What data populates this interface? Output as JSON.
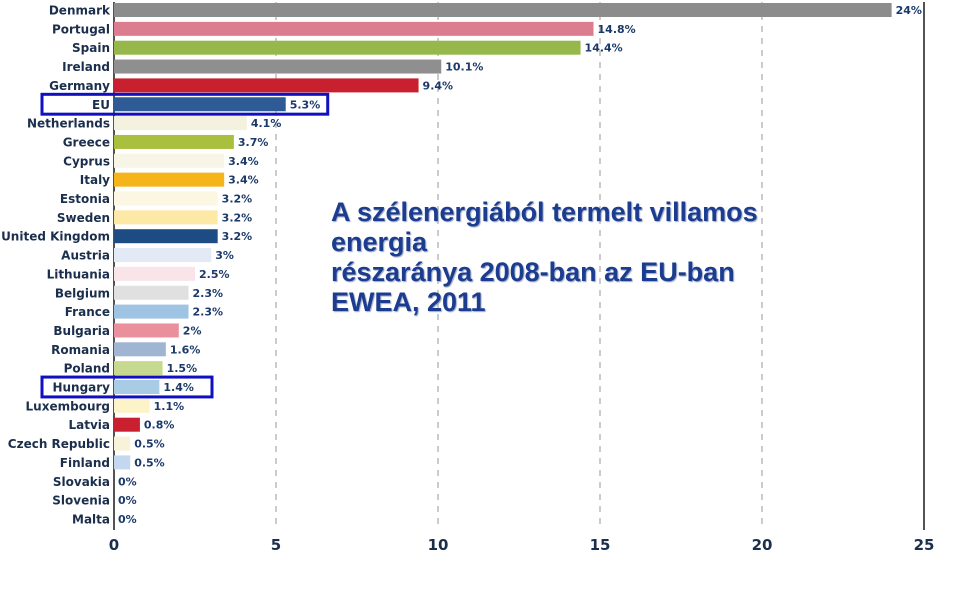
{
  "overlay": {
    "line1": "A szélenergiából termelt villamos",
    "line2": "energia",
    "line3": "részaránya 2008-ban az EU-ban",
    "line4": "EWEA, 2011"
  },
  "chart_data": {
    "type": "bar",
    "orientation": "horizontal",
    "title": "",
    "xlabel": "",
    "ylabel": "",
    "xlim": [
      0,
      25
    ],
    "x_ticks": [
      0,
      5,
      10,
      15,
      20,
      25
    ],
    "grid": true,
    "categories": [
      "Denmark",
      "Portugal",
      "Spain",
      "Ireland",
      "Germany",
      "EU",
      "Netherlands",
      "Greece",
      "Cyprus",
      "Italy",
      "Estonia",
      "Sweden",
      "United Kingdom",
      "Austria",
      "Lithuania",
      "Belgium",
      "France",
      "Bulgaria",
      "Romania",
      "Poland",
      "Hungary",
      "Luxembourg",
      "Latvia",
      "Czech Republic",
      "Finland",
      "Slovakia",
      "Slovenia",
      "Malta"
    ],
    "values": [
      24,
      14.8,
      14.4,
      10.1,
      9.4,
      5.3,
      4.1,
      3.7,
      3.4,
      3.4,
      3.2,
      3.2,
      3.2,
      3,
      2.5,
      2.3,
      2.3,
      2,
      1.6,
      1.5,
      1.4,
      1.1,
      0.8,
      0.5,
      0.5,
      0,
      0,
      0
    ],
    "value_labels": [
      "24%",
      "14.8%",
      "14.4%",
      "10.1%",
      "9.4%",
      "5.3%",
      "4.1%",
      "3.7%",
      "3.4%",
      "3.4%",
      "3.2%",
      "3.2%",
      "3.2%",
      "3%",
      "2.5%",
      "2.3%",
      "2.3%",
      "2%",
      "1.6%",
      "1.5%",
      "1.4%",
      "1.1%",
      "0.8%",
      "0.5%",
      "0.5%",
      "0%",
      "0%",
      "0%"
    ],
    "bar_colors": [
      "#8c8c8c",
      "#db7d8e",
      "#96b84b",
      "#8f8f8f",
      "#c8202f",
      "#2e5b96",
      "#f5f1df",
      "#a9bf3e",
      "#f7f5e6",
      "#f4b41a",
      "#fbf7e3",
      "#fde9a6",
      "#1d4c84",
      "#e3eaf5",
      "#f9e4ea",
      "#e0e0e0",
      "#9fc3e3",
      "#ea8f9c",
      "#9fb5d2",
      "#c6d98e",
      "#a8cbe6",
      "#fdf3c8",
      "#c8202f",
      "#f7f2d8",
      "#c3d8ee",
      "#eeeeee",
      "#eeeeee",
      "#eeeeee"
    ],
    "highlighted": [
      "EU",
      "Hungary"
    ],
    "highlight_color": "#1010c0"
  }
}
